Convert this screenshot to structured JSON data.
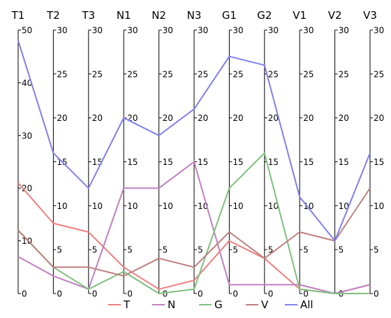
{
  "chart_data": {
    "type": "line",
    "subtype": "parallel-coordinates",
    "title": "",
    "axes": [
      {
        "name": "T1",
        "range": [
          0,
          50
        ],
        "ticks": [
          "0",
          "10",
          "20",
          "30",
          "40",
          "50"
        ]
      },
      {
        "name": "T2",
        "range": [
          0,
          30
        ],
        "ticks": [
          "0",
          "5",
          "10",
          "15",
          "20",
          "25",
          "30"
        ]
      },
      {
        "name": "T3",
        "range": [
          0,
          30
        ],
        "ticks": [
          "0",
          "5",
          "10",
          "15",
          "20",
          "25",
          "30"
        ]
      },
      {
        "name": "N1",
        "range": [
          0,
          30
        ],
        "ticks": [
          "0",
          "5",
          "10",
          "15",
          "20",
          "25",
          "30"
        ]
      },
      {
        "name": "N2",
        "range": [
          0,
          30
        ],
        "ticks": [
          "0",
          "5",
          "10",
          "15",
          "20",
          "25",
          "30"
        ]
      },
      {
        "name": "N3",
        "range": [
          0,
          30
        ],
        "ticks": [
          "0",
          "5",
          "10",
          "15",
          "20",
          "25",
          "30"
        ]
      },
      {
        "name": "G1",
        "range": [
          0,
          30
        ],
        "ticks": [
          "0",
          "5",
          "10",
          "15",
          "20",
          "25",
          "30"
        ]
      },
      {
        "name": "G2",
        "range": [
          0,
          30
        ],
        "ticks": [
          "0",
          "5",
          "10",
          "15",
          "20",
          "25",
          "30"
        ]
      },
      {
        "name": "V1",
        "range": [
          0,
          30
        ],
        "ticks": [
          "0",
          "5",
          "10",
          "15",
          "20",
          "25",
          "30"
        ]
      },
      {
        "name": "V2",
        "range": [
          0,
          30
        ],
        "ticks": [
          "0",
          "5",
          "10",
          "15",
          "20",
          "25",
          "30"
        ]
      },
      {
        "name": "V3",
        "range": [
          0,
          30
        ],
        "ticks": [
          "0",
          "5",
          "10",
          "15",
          "20",
          "25",
          "30"
        ]
      }
    ],
    "series": [
      {
        "name": "T",
        "color": "#f07f7f",
        "values": [
          21,
          8,
          7,
          3,
          0.5,
          1.5,
          6,
          4,
          0.5,
          0,
          1
        ]
      },
      {
        "name": "N",
        "color": "#c07fc0",
        "values": [
          7,
          2,
          0.5,
          12,
          12,
          15,
          1,
          1,
          1,
          0,
          1
        ]
      },
      {
        "name": "G",
        "color": "#7fbf7f",
        "values": [
          12,
          3,
          0.5,
          2.5,
          0,
          0.5,
          12,
          16,
          0.5,
          0,
          0
        ]
      },
      {
        "name": "V",
        "color": "#bf7f7f",
        "values": [
          12,
          3,
          3,
          2,
          4,
          3,
          7,
          4,
          7,
          6,
          12
        ]
      },
      {
        "name": "All",
        "color": "#7f7ff0",
        "values": [
          48,
          16,
          12,
          20,
          18,
          21,
          27,
          26,
          11,
          6,
          16
        ]
      }
    ],
    "legend": {
      "position": "bottom-center"
    },
    "grid": false
  }
}
